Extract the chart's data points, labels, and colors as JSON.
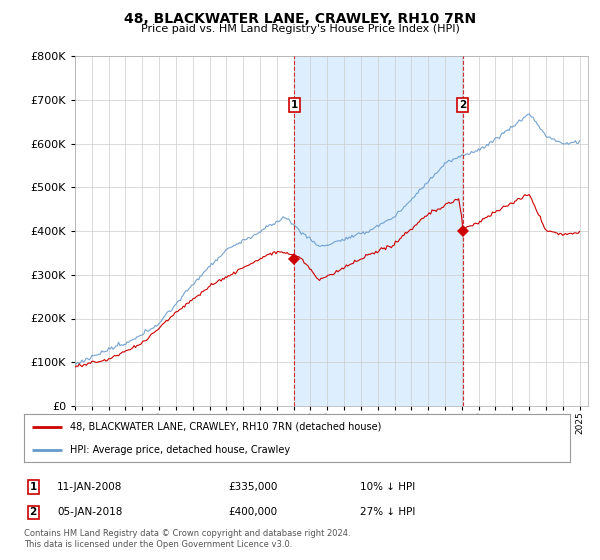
{
  "title": "48, BLACKWATER LANE, CRAWLEY, RH10 7RN",
  "subtitle": "Price paid vs. HM Land Registry's House Price Index (HPI)",
  "ylim": [
    0,
    800000
  ],
  "xlim_start": 1995.0,
  "xlim_end": 2025.5,
  "transaction1": {
    "date": 2008.04,
    "price": 335000,
    "label": "1"
  },
  "transaction2": {
    "date": 2018.04,
    "price": 400000,
    "label": "2"
  },
  "legend_line1": "48, BLACKWATER LANE, CRAWLEY, RH10 7RN (detached house)",
  "legend_line2": "HPI: Average price, detached house, Crawley",
  "footer": "Contains HM Land Registry data © Crown copyright and database right 2024.\nThis data is licensed under the Open Government Licence v3.0.",
  "red_color": "#cc0000",
  "blue_color": "#6699cc",
  "shade_color": "#ddeeff",
  "background_color": "#ffffff",
  "grid_color": "#cccccc"
}
